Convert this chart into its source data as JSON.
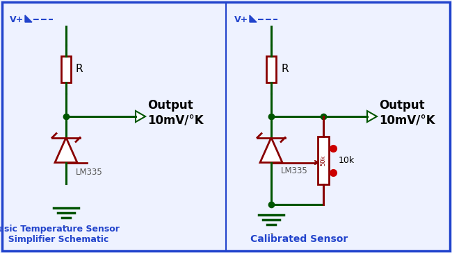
{
  "bg_color": "#eef2ff",
  "border_color": "#2244cc",
  "wire_color": "#005500",
  "component_color": "#880000",
  "dot_color": "#005500",
  "output_color": "#000000",
  "label_color": "#2244cc",
  "title1": "Basic Temperature Sensor\n  Simplifier Schematic",
  "title2": "Calibrated Sensor",
  "output_text": "Output\n10mV/°K",
  "lm335_label": "LM335",
  "r_label": "R",
  "pot_label": "10k",
  "pot_text": "50k",
  "vplus_label": "V+",
  "minus_label": "-"
}
